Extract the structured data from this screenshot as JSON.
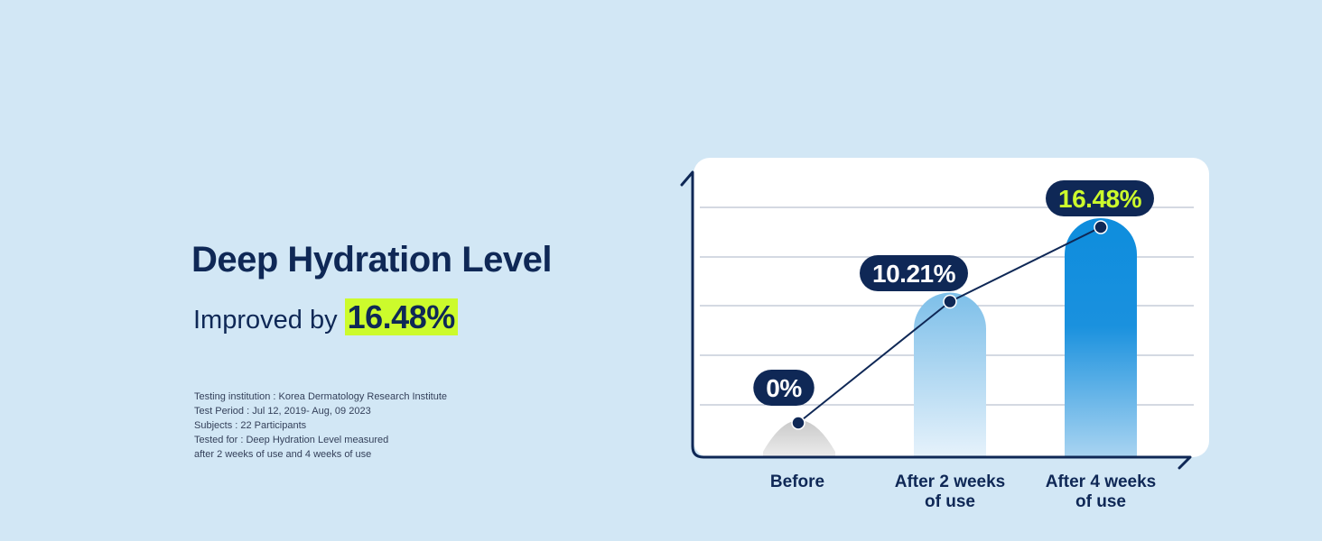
{
  "headline": "Deep Hydration Level",
  "subline": {
    "prefix": "Improved by ",
    "highlight": "16.48%"
  },
  "notes": [
    "Testing institution : Korea Dermatology Research Institute",
    "Test Period : Jul 12, 2019- Aug, 09 2023",
    "Subjects : 22 Participants",
    "Tested for : Deep Hydration Level measured",
    "after 2 weeks of use and 4 weeks of use"
  ],
  "colors": {
    "background": "#d2e7f5",
    "navy": "#0f2856",
    "highlight": "#ccfb2c",
    "bar_blue": "#0f8ddc",
    "bar_light_blue": "#86c4eb",
    "bar_grey": "#cfcfcf"
  },
  "chart_data": {
    "type": "bar",
    "title": "",
    "xlabel": "",
    "ylabel": "",
    "categories": [
      [
        "Before"
      ],
      [
        "After 2 weeks",
        "of use"
      ],
      [
        "After 4 weeks",
        "of use"
      ]
    ],
    "values": [
      0,
      10.21,
      16.48
    ],
    "labels": [
      "0%",
      "10.21%",
      "16.48%"
    ],
    "ylim": [
      0,
      16.48
    ],
    "grid": true,
    "overlay_line": true
  }
}
